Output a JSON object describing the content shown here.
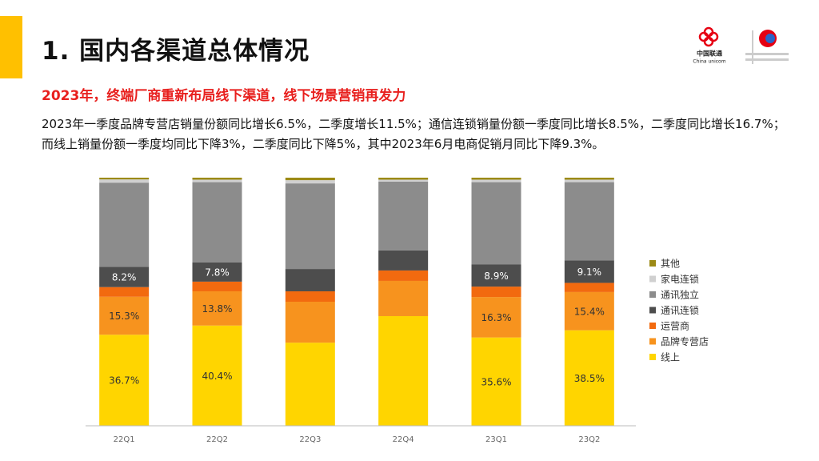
{
  "header": {
    "title": "1. 国内各渠道总体情况",
    "logo_cn": "中国联通",
    "logo_en": "China unicom"
  },
  "subtitle": "2023年，终端厂商重新布局线下渠道，线下场景营销再发力",
  "body": "2023年一季度品牌专营店销量份额同比增长6.5%，二季度增长11.5%；通信连锁销量份额一季度同比增长8.5%，二季度同比增长16.7%；而线上销量份额一季度均同比下降3%，二季度同比下降5%，其中2023年6月电商促销月同比下降9.3%。",
  "chart_data": {
    "type": "stacked_bar",
    "categories": [
      "22Q1",
      "22Q2",
      "22Q3",
      "22Q4",
      "23Q1",
      "23Q2"
    ],
    "ylim": [
      0,
      100
    ],
    "series": [
      {
        "name": "线上",
        "color": "#ffd500",
        "values": [
          36.7,
          40.4,
          33.5,
          44.2,
          35.6,
          38.5
        ],
        "value_labels": [
          "36.7%",
          "40.4%",
          null,
          null,
          "35.6%",
          "38.5%"
        ]
      },
      {
        "name": "品牌专营店",
        "color": "#f7931e",
        "values": [
          15.3,
          13.8,
          16.5,
          14.2,
          16.3,
          15.4
        ],
        "value_labels": [
          "15.3%",
          "13.8%",
          null,
          null,
          "16.3%",
          "15.4%"
        ]
      },
      {
        "name": "运营商",
        "color": "#f26a0f",
        "values": [
          3.9,
          3.9,
          4.2,
          4.2,
          4.2,
          3.7
        ]
      },
      {
        "name": "通讯连锁",
        "color": "#4d4d4d",
        "values": [
          8.2,
          7.8,
          9.0,
          8.1,
          8.9,
          9.1
        ],
        "value_labels": [
          "8.2%",
          "7.8%",
          null,
          null,
          "8.9%",
          "9.1%"
        ]
      },
      {
        "name": "通讯独立",
        "color": "#8c8c8c",
        "values": [
          33.9,
          32.3,
          34.5,
          27.7,
          33.2,
          31.5
        ]
      },
      {
        "name": "家电连锁",
        "color": "#d0d0d0",
        "values": [
          1.3,
          1.0,
          1.3,
          0.8,
          1.0,
          1.0
        ]
      },
      {
        "name": "其他",
        "color": "#9c8a16",
        "values": [
          0.7,
          0.8,
          1.0,
          0.8,
          0.8,
          0.8
        ]
      }
    ]
  }
}
